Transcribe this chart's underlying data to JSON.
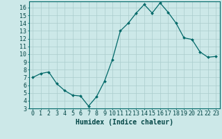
{
  "x": [
    0,
    1,
    2,
    3,
    4,
    5,
    6,
    7,
    8,
    9,
    10,
    11,
    12,
    13,
    14,
    15,
    16,
    17,
    18,
    19,
    20,
    21,
    22,
    23
  ],
  "y": [
    7.0,
    7.5,
    7.7,
    6.2,
    5.3,
    4.7,
    4.6,
    3.3,
    4.5,
    6.5,
    9.3,
    13.0,
    14.0,
    15.3,
    16.4,
    15.3,
    16.6,
    15.4,
    14.0,
    12.1,
    11.9,
    10.3,
    9.6,
    9.7
  ],
  "line_color": "#006868",
  "marker_color": "#006868",
  "bg_color": "#cce8e8",
  "grid_color": "#aacccc",
  "xlabel": "Humidex (Indice chaleur)",
  "ylim": [
    3,
    16.8
  ],
  "xlim": [
    -0.5,
    23.5
  ],
  "yticks": [
    3,
    4,
    5,
    6,
    7,
    8,
    9,
    10,
    11,
    12,
    13,
    14,
    15,
    16
  ],
  "xticks": [
    0,
    1,
    2,
    3,
    4,
    5,
    6,
    7,
    8,
    9,
    10,
    11,
    12,
    13,
    14,
    15,
    16,
    17,
    18,
    19,
    20,
    21,
    22,
    23
  ],
  "tick_fontsize": 6.0,
  "xlabel_fontsize": 7.0
}
